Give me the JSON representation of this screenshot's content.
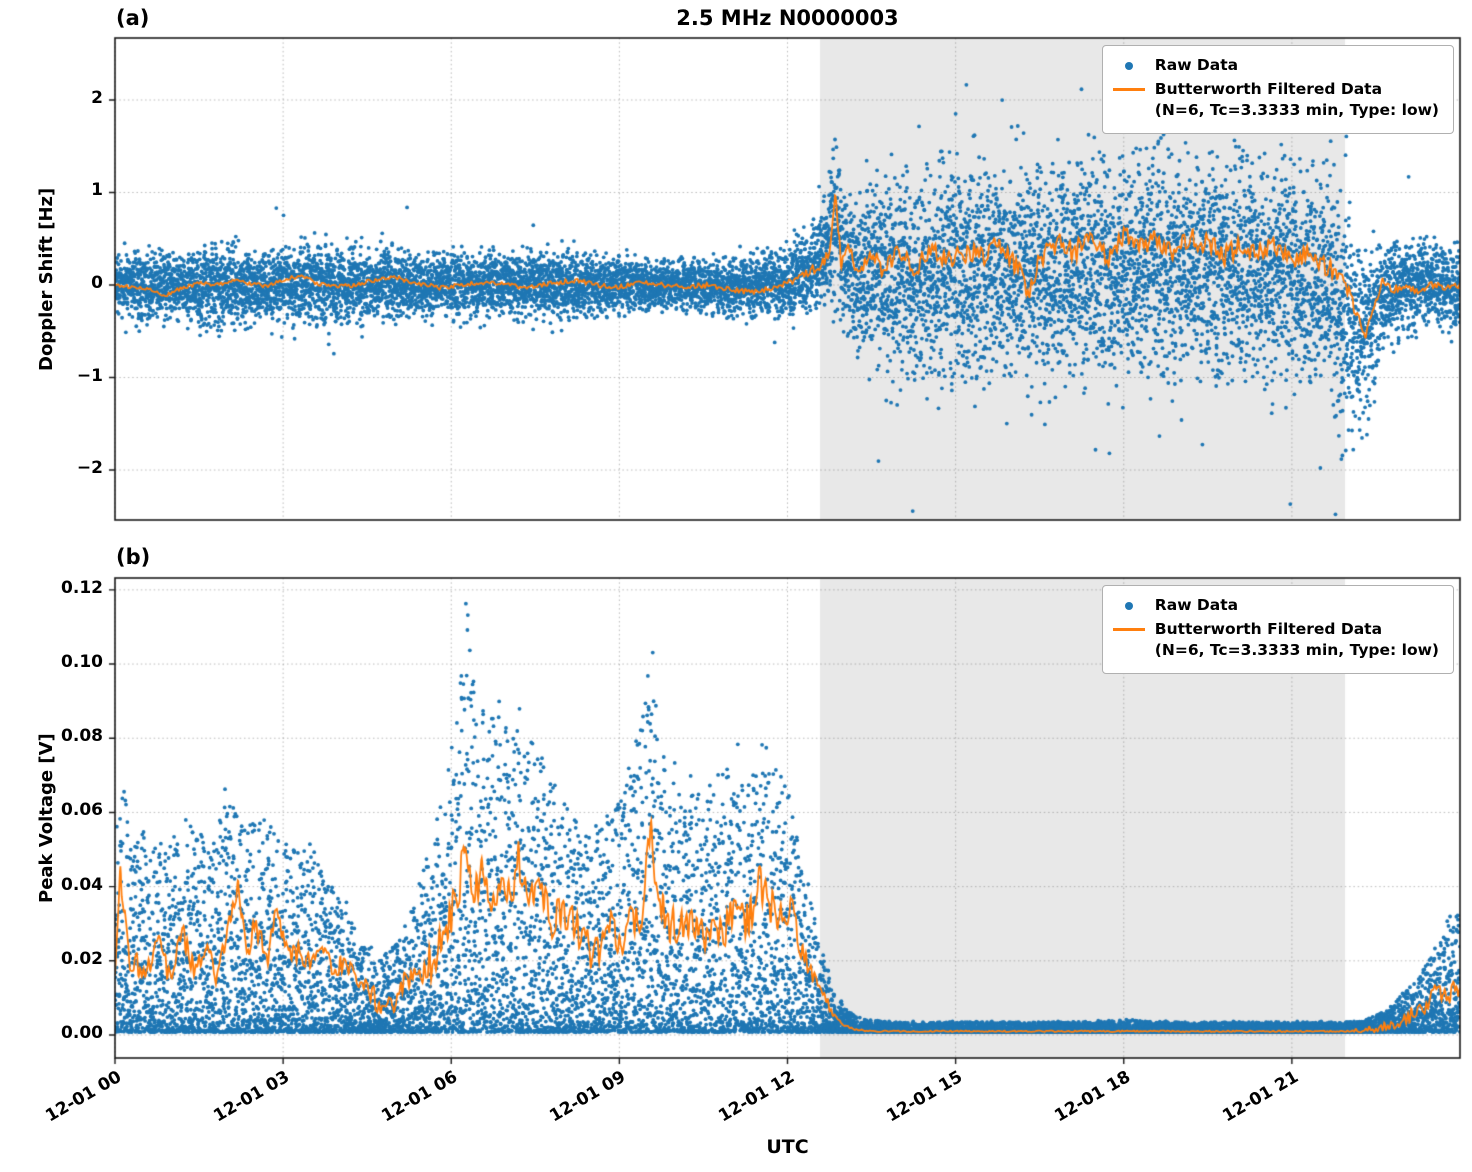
{
  "figure": {
    "title": "2.5 MHz N0000003",
    "xlabel": "UTC",
    "panel_a_letter": "(a)",
    "panel_b_letter": "(b)"
  },
  "legend": {
    "raw_label": "Raw Data",
    "filtered_label": "Butterworth Filtered Data",
    "filtered_sublabel": "(N=6, Tc=3.3333 min, Type: low)"
  },
  "colors": {
    "raw": "#1f77b4",
    "filtered": "#ff7f0e",
    "shade": "#e8e8e8",
    "grid": "#9a9a9a",
    "spine": "#1a1a1a"
  },
  "chart_data": [
    {
      "id": "a",
      "type": "scatter",
      "title": "2.5 MHz N0000003",
      "ylabel": "Doppler Shift [Hz]",
      "ylim": [
        -2.54,
        2.67
      ],
      "yticks": [
        -2,
        -1,
        0,
        1,
        2
      ],
      "ytick_labels": [
        "−2",
        "−1",
        "0",
        "1",
        "2"
      ],
      "xlim_hours": [
        0,
        24
      ],
      "xticks_hours": [
        0,
        3,
        6,
        9,
        12,
        15,
        18,
        21
      ],
      "xtick_labels": [
        "12-01 00",
        "12-01 03",
        "12-01 06",
        "12-01 09",
        "12-01 12",
        "12-01 15",
        "12-01 18",
        "12-01 21"
      ],
      "shade_region_hours": [
        12.58,
        21.95
      ],
      "dist": "gauss",
      "outlier_fraction": 0.02,
      "outlier_scale": 2.0,
      "scatter_envelope": [
        [
          0,
          0,
          0.25
        ],
        [
          0.5,
          -0.02,
          0.3
        ],
        [
          1,
          0,
          0.28
        ],
        [
          1.5,
          -0.05,
          0.33
        ],
        [
          2,
          0,
          0.36
        ],
        [
          2.5,
          0,
          0.3
        ],
        [
          3,
          0.02,
          0.33
        ],
        [
          3.5,
          0,
          0.38
        ],
        [
          4,
          0,
          0.33
        ],
        [
          4.5,
          0,
          0.3
        ],
        [
          5,
          0.02,
          0.32
        ],
        [
          5.5,
          0,
          0.28
        ],
        [
          6,
          0,
          0.26
        ],
        [
          6.5,
          0,
          0.28
        ],
        [
          7,
          0,
          0.26
        ],
        [
          7.5,
          0,
          0.28
        ],
        [
          8,
          0.02,
          0.3
        ],
        [
          8.5,
          0,
          0.26
        ],
        [
          9,
          0,
          0.24
        ],
        [
          9.5,
          0,
          0.22
        ],
        [
          10,
          0,
          0.22
        ],
        [
          10.5,
          0,
          0.24
        ],
        [
          11,
          -0.02,
          0.24
        ],
        [
          11.5,
          0,
          0.27
        ],
        [
          12,
          0.05,
          0.32
        ],
        [
          12.4,
          0.15,
          0.38
        ],
        [
          12.7,
          0.35,
          0.5
        ],
        [
          12.85,
          0.7,
          0.75
        ],
        [
          13,
          0.25,
          0.65
        ],
        [
          13.3,
          0.1,
          0.75
        ],
        [
          13.6,
          0.1,
          0.85
        ],
        [
          14,
          0.1,
          0.9
        ],
        [
          14.5,
          0.1,
          0.92
        ],
        [
          15,
          0.12,
          0.95
        ],
        [
          16,
          0.15,
          1.0
        ],
        [
          17,
          0.15,
          1.0
        ],
        [
          18,
          0.2,
          1.0
        ],
        [
          19,
          0.18,
          1.0
        ],
        [
          20,
          0.15,
          0.95
        ],
        [
          21,
          0.12,
          0.95
        ],
        [
          21.7,
          0,
          1.0
        ],
        [
          22.0,
          -0.4,
          1.0
        ],
        [
          22.3,
          -0.5,
          0.8
        ],
        [
          22.6,
          -0.1,
          0.5
        ],
        [
          23,
          0,
          0.4
        ],
        [
          23.5,
          0,
          0.35
        ],
        [
          24,
          -0.05,
          0.4
        ]
      ],
      "line_base": [
        [
          0,
          0.0
        ],
        [
          0.3,
          -0.02
        ],
        [
          0.6,
          -0.05
        ],
        [
          0.9,
          -0.12
        ],
        [
          1.1,
          -0.05
        ],
        [
          1.5,
          0.02
        ],
        [
          1.8,
          0.0
        ],
        [
          2.1,
          0.05
        ],
        [
          2.4,
          0.02
        ],
        [
          2.7,
          -0.02
        ],
        [
          3.0,
          0.05
        ],
        [
          3.3,
          0.1
        ],
        [
          3.6,
          0.02
        ],
        [
          4.0,
          -0.02
        ],
        [
          4.3,
          0.0
        ],
        [
          4.6,
          0.05
        ],
        [
          5.0,
          0.08
        ],
        [
          5.4,
          0.02
        ],
        [
          5.8,
          -0.03
        ],
        [
          6.2,
          0.0
        ],
        [
          6.6,
          0.03
        ],
        [
          7.0,
          0.0
        ],
        [
          7.4,
          -0.03
        ],
        [
          7.8,
          0.02
        ],
        [
          8.2,
          0.05
        ],
        [
          8.6,
          0.0
        ],
        [
          9.0,
          -0.02
        ],
        [
          9.4,
          0.02
        ],
        [
          9.8,
          0.0
        ],
        [
          10.2,
          -0.02
        ],
        [
          10.6,
          0.0
        ],
        [
          11.0,
          -0.05
        ],
        [
          11.4,
          -0.08
        ],
        [
          11.8,
          -0.02
        ],
        [
          12.1,
          0.05
        ],
        [
          12.4,
          0.15
        ],
        [
          12.6,
          0.2
        ],
        [
          12.75,
          0.3
        ],
        [
          12.85,
          1.0
        ],
        [
          12.95,
          0.25
        ],
        [
          13.1,
          0.35
        ],
        [
          13.3,
          0.15
        ],
        [
          13.5,
          0.35
        ],
        [
          13.7,
          0.2
        ],
        [
          14.0,
          0.35
        ],
        [
          14.3,
          0.15
        ],
        [
          14.6,
          0.4
        ],
        [
          14.9,
          0.25
        ],
        [
          15.2,
          0.35
        ],
        [
          15.5,
          0.3
        ],
        [
          15.8,
          0.45
        ],
        [
          16.1,
          0.2
        ],
        [
          16.3,
          -0.1
        ],
        [
          16.5,
          0.3
        ],
        [
          16.8,
          0.45
        ],
        [
          17.1,
          0.35
        ],
        [
          17.4,
          0.5
        ],
        [
          17.7,
          0.3
        ],
        [
          18.0,
          0.55
        ],
        [
          18.3,
          0.4
        ],
        [
          18.6,
          0.5
        ],
        [
          18.9,
          0.35
        ],
        [
          19.2,
          0.5
        ],
        [
          19.5,
          0.45
        ],
        [
          19.8,
          0.3
        ],
        [
          20.1,
          0.45
        ],
        [
          20.4,
          0.35
        ],
        [
          20.7,
          0.45
        ],
        [
          21.0,
          0.3
        ],
        [
          21.3,
          0.35
        ],
        [
          21.6,
          0.2
        ],
        [
          21.9,
          0.1
        ],
        [
          22.1,
          -0.2
        ],
        [
          22.3,
          -0.55
        ],
        [
          22.45,
          -0.3
        ],
        [
          22.6,
          0.05
        ],
        [
          22.8,
          -0.05
        ],
        [
          23.0,
          0.0
        ],
        [
          23.2,
          -0.08
        ],
        [
          23.5,
          0.0
        ],
        [
          23.8,
          -0.03
        ],
        [
          24,
          0.0
        ]
      ],
      "line_noise_amp": [
        [
          0,
          0.02
        ],
        [
          12,
          0.03
        ],
        [
          12.6,
          0.08
        ],
        [
          13,
          0.12
        ],
        [
          21.5,
          0.12
        ],
        [
          22,
          0.1
        ],
        [
          22.5,
          0.05
        ],
        [
          24,
          0.03
        ]
      ]
    },
    {
      "id": "b",
      "type": "scatter",
      "ylabel": "Peak Voltage [V]",
      "ylim": [
        -0.0062,
        0.1232
      ],
      "yticks": [
        0,
        0.02,
        0.04,
        0.06,
        0.08,
        0.1,
        0.12
      ],
      "ytick_labels": [
        "0.00",
        "0.02",
        "0.04",
        "0.06",
        "0.08",
        "0.10",
        "0.12"
      ],
      "xlim_hours": [
        0,
        24
      ],
      "xticks_hours": [
        0,
        3,
        6,
        9,
        12,
        15,
        18,
        21
      ],
      "xtick_labels": [
        "12-01 00",
        "12-01 03",
        "12-01 06",
        "12-01 09",
        "12-01 12",
        "12-01 15",
        "12-01 18",
        "12-01 21"
      ],
      "shade_region_hours": [
        12.58,
        21.95
      ],
      "dist": "skew",
      "scatter_floor": 0.0008,
      "scatter_envelope": [
        [
          0,
          0.055
        ],
        [
          0.1,
          0.075
        ],
        [
          0.25,
          0.055
        ],
        [
          0.5,
          0.055
        ],
        [
          0.8,
          0.05
        ],
        [
          1.1,
          0.052
        ],
        [
          1.4,
          0.058
        ],
        [
          1.7,
          0.05
        ],
        [
          2.0,
          0.065
        ],
        [
          2.3,
          0.055
        ],
        [
          2.6,
          0.06
        ],
        [
          2.9,
          0.055
        ],
        [
          3.2,
          0.05
        ],
        [
          3.5,
          0.052
        ],
        [
          3.8,
          0.042
        ],
        [
          4.1,
          0.035
        ],
        [
          4.4,
          0.026
        ],
        [
          4.7,
          0.02
        ],
        [
          5.0,
          0.025
        ],
        [
          5.3,
          0.035
        ],
        [
          5.6,
          0.05
        ],
        [
          5.9,
          0.07
        ],
        [
          6.1,
          0.085
        ],
        [
          6.3,
          0.117
        ],
        [
          6.5,
          0.09
        ],
        [
          6.7,
          0.088
        ],
        [
          6.9,
          0.085
        ],
        [
          7.1,
          0.082
        ],
        [
          7.3,
          0.085
        ],
        [
          7.5,
          0.08
        ],
        [
          7.7,
          0.072
        ],
        [
          7.9,
          0.068
        ],
        [
          8.1,
          0.06
        ],
        [
          8.3,
          0.056
        ],
        [
          8.5,
          0.055
        ],
        [
          8.7,
          0.06
        ],
        [
          8.9,
          0.062
        ],
        [
          9.1,
          0.068
        ],
        [
          9.3,
          0.08
        ],
        [
          9.55,
          0.104
        ],
        [
          9.7,
          0.085
        ],
        [
          9.9,
          0.078
        ],
        [
          10.1,
          0.07
        ],
        [
          10.3,
          0.066
        ],
        [
          10.5,
          0.065
        ],
        [
          10.7,
          0.07
        ],
        [
          10.9,
          0.072
        ],
        [
          11.1,
          0.075
        ],
        [
          11.3,
          0.07
        ],
        [
          11.5,
          0.075
        ],
        [
          11.7,
          0.073
        ],
        [
          11.9,
          0.078
        ],
        [
          12.1,
          0.06
        ],
        [
          12.35,
          0.04
        ],
        [
          12.6,
          0.025
        ],
        [
          12.8,
          0.014
        ],
        [
          13.0,
          0.008
        ],
        [
          13.2,
          0.005
        ],
        [
          13.5,
          0.004
        ],
        [
          14,
          0.0035
        ],
        [
          15,
          0.0035
        ],
        [
          16,
          0.0035
        ],
        [
          17,
          0.0035
        ],
        [
          18,
          0.004
        ],
        [
          19,
          0.0035
        ],
        [
          20,
          0.0035
        ],
        [
          21,
          0.0035
        ],
        [
          22,
          0.0035
        ],
        [
          22.3,
          0.004
        ],
        [
          22.6,
          0.006
        ],
        [
          22.9,
          0.01
        ],
        [
          23.2,
          0.015
        ],
        [
          23.5,
          0.022
        ],
        [
          23.8,
          0.03
        ],
        [
          24,
          0.034
        ]
      ],
      "line_base": [
        [
          0,
          0.02
        ],
        [
          0.1,
          0.044
        ],
        [
          0.25,
          0.02
        ],
        [
          0.5,
          0.018
        ],
        [
          0.8,
          0.025
        ],
        [
          1.0,
          0.015
        ],
        [
          1.2,
          0.028
        ],
        [
          1.4,
          0.018
        ],
        [
          1.6,
          0.024
        ],
        [
          1.8,
          0.016
        ],
        [
          2.0,
          0.028
        ],
        [
          2.2,
          0.04
        ],
        [
          2.35,
          0.02
        ],
        [
          2.5,
          0.03
        ],
        [
          2.7,
          0.02
        ],
        [
          2.9,
          0.035
        ],
        [
          3.1,
          0.02
        ],
        [
          3.3,
          0.022
        ],
        [
          3.5,
          0.018
        ],
        [
          3.7,
          0.025
        ],
        [
          3.9,
          0.018
        ],
        [
          4.1,
          0.02
        ],
        [
          4.3,
          0.015
        ],
        [
          4.5,
          0.012
        ],
        [
          4.7,
          0.009
        ],
        [
          4.9,
          0.008
        ],
        [
          5.1,
          0.012
        ],
        [
          5.3,
          0.015
        ],
        [
          5.5,
          0.018
        ],
        [
          5.7,
          0.02
        ],
        [
          5.9,
          0.03
        ],
        [
          6.1,
          0.035
        ],
        [
          6.25,
          0.052
        ],
        [
          6.4,
          0.035
        ],
        [
          6.55,
          0.045
        ],
        [
          6.7,
          0.035
        ],
        [
          6.85,
          0.042
        ],
        [
          7.0,
          0.035
        ],
        [
          7.2,
          0.048
        ],
        [
          7.4,
          0.035
        ],
        [
          7.6,
          0.04
        ],
        [
          7.8,
          0.03
        ],
        [
          8.0,
          0.035
        ],
        [
          8.2,
          0.028
        ],
        [
          8.4,
          0.025
        ],
        [
          8.6,
          0.022
        ],
        [
          8.8,
          0.03
        ],
        [
          9.0,
          0.025
        ],
        [
          9.2,
          0.032
        ],
        [
          9.4,
          0.028
        ],
        [
          9.55,
          0.058
        ],
        [
          9.7,
          0.035
        ],
        [
          9.9,
          0.03
        ],
        [
          10.1,
          0.028
        ],
        [
          10.3,
          0.033
        ],
        [
          10.5,
          0.025
        ],
        [
          10.7,
          0.03
        ],
        [
          10.9,
          0.028
        ],
        [
          11.1,
          0.035
        ],
        [
          11.3,
          0.03
        ],
        [
          11.5,
          0.042
        ],
        [
          11.7,
          0.035
        ],
        [
          11.9,
          0.03
        ],
        [
          12.05,
          0.035
        ],
        [
          12.2,
          0.025
        ],
        [
          12.4,
          0.018
        ],
        [
          12.6,
          0.012
        ],
        [
          12.8,
          0.006
        ],
        [
          13.0,
          0.003
        ],
        [
          13.2,
          0.0015
        ],
        [
          13.5,
          0.001
        ],
        [
          14,
          0.001
        ],
        [
          15,
          0.001
        ],
        [
          16,
          0.001
        ],
        [
          17,
          0.001
        ],
        [
          18,
          0.001
        ],
        [
          19,
          0.001
        ],
        [
          20,
          0.001
        ],
        [
          21,
          0.001
        ],
        [
          22,
          0.001
        ],
        [
          22.4,
          0.0015
        ],
        [
          22.8,
          0.003
        ],
        [
          23.1,
          0.005
        ],
        [
          23.4,
          0.008
        ],
        [
          23.6,
          0.012
        ],
        [
          23.8,
          0.01
        ],
        [
          23.9,
          0.015
        ],
        [
          24,
          0.012
        ]
      ],
      "line_noise_amp": [
        [
          0,
          0.004
        ],
        [
          4.5,
          0.003
        ],
        [
          6,
          0.006
        ],
        [
          12,
          0.005
        ],
        [
          12.8,
          0.001
        ],
        [
          13.2,
          0.0002
        ],
        [
          22,
          0.0002
        ],
        [
          23,
          0.002
        ],
        [
          24,
          0.003
        ]
      ]
    }
  ]
}
